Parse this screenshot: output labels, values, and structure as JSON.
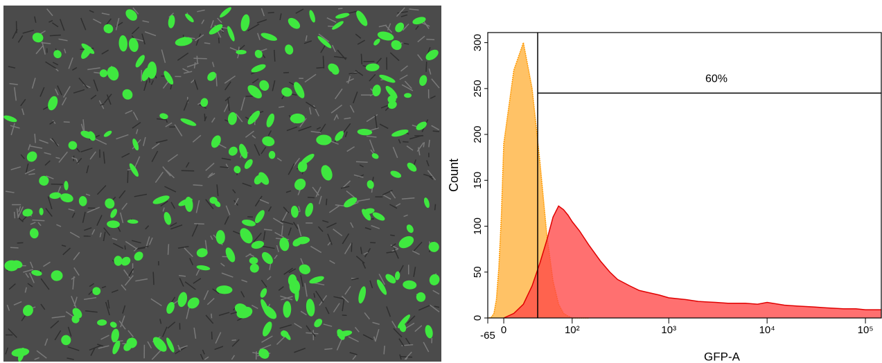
{
  "chart_data": {
    "type": "histogram-overlay",
    "xlabel": "GFP-A",
    "ylabel": "Count",
    "xscale": "biexponential",
    "xlim": [
      -65,
      145000
    ],
    "ylim": [
      0,
      311
    ],
    "xticks": [
      -65,
      0,
      {
        "value": 100,
        "label": "10²"
      },
      {
        "value": 1000,
        "label": "10³"
      },
      {
        "value": 10000,
        "label": "10⁴"
      },
      {
        "value": 100000,
        "label": "10⁵"
      }
    ],
    "yticks": [
      0,
      50,
      100,
      150,
      200,
      250,
      300
    ],
    "x": [
      -60,
      -50,
      -40,
      -30,
      -20,
      -10,
      0,
      10,
      20,
      30,
      40,
      50,
      60,
      70,
      80,
      90,
      100,
      120,
      150,
      200,
      250,
      300,
      400,
      500,
      600,
      800,
      1000,
      1500,
      2000,
      3000,
      4000,
      6000,
      8000,
      10000,
      15000,
      20000,
      30000,
      40000,
      60000,
      80000,
      100000,
      145000
    ],
    "series": [
      {
        "color": "#ff9900",
        "fill": "#ffbb55",
        "values": [
          0,
          1,
          5,
          20,
          55,
          110,
          190,
          270,
          300,
          250,
          170,
          90,
          40,
          15,
          5,
          2,
          0,
          0,
          0,
          null,
          null,
          null,
          null,
          null,
          null,
          null,
          null,
          null,
          null,
          null,
          null,
          null,
          null,
          null,
          null,
          null,
          null,
          null,
          null,
          null,
          null,
          null
        ]
      },
      {
        "color": "#e00000",
        "fill": "#ff4848",
        "values": [
          null,
          null,
          null,
          null,
          null,
          null,
          0,
          5,
          15,
          35,
          60,
          85,
          110,
          122,
          118,
          112,
          105,
          95,
          80,
          62,
          50,
          42,
          35,
          30,
          28,
          25,
          22,
          20,
          18,
          17,
          16,
          16,
          15,
          17,
          14,
          13,
          12,
          11,
          10,
          10,
          9,
          9
        ]
      }
    ],
    "gate": {
      "x": 37,
      "y": 245,
      "label": "60%"
    }
  }
}
